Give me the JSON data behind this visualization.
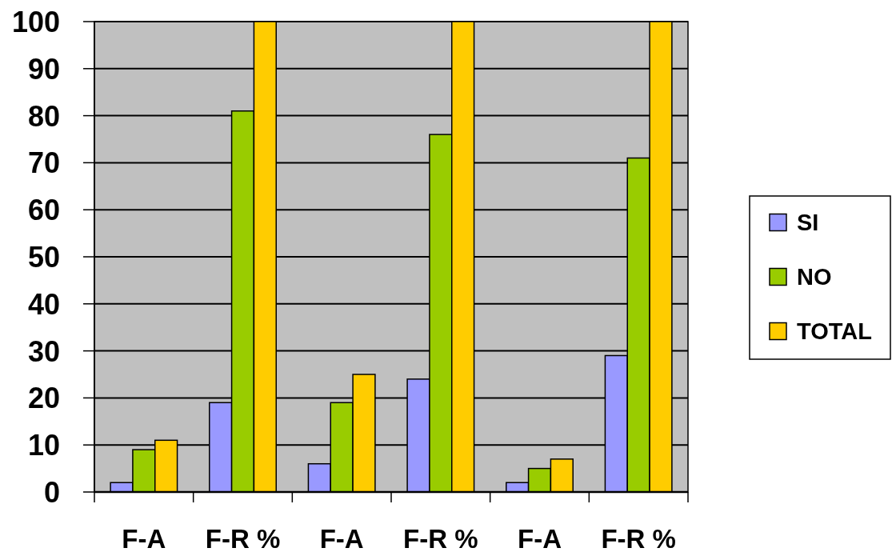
{
  "chart_data": {
    "type": "bar",
    "categories": [
      "F-A",
      "F-R %",
      "F-A",
      "F-R %",
      "F-A",
      "F-R %"
    ],
    "series": [
      {
        "name": "SI",
        "color": "#9999ff",
        "values": [
          2,
          19,
          6,
          24,
          2,
          29
        ]
      },
      {
        "name": "NO",
        "color": "#99cc00",
        "values": [
          9,
          81,
          19,
          76,
          5,
          71
        ]
      },
      {
        "name": "TOTAL",
        "color": "#ffcc00",
        "values": [
          11,
          100,
          25,
          100,
          7,
          100
        ]
      }
    ],
    "ylim": [
      0,
      100
    ],
    "yticks": [
      0,
      10,
      20,
      30,
      40,
      50,
      60,
      70,
      80,
      90,
      100
    ],
    "grid": true,
    "legend": "right"
  }
}
